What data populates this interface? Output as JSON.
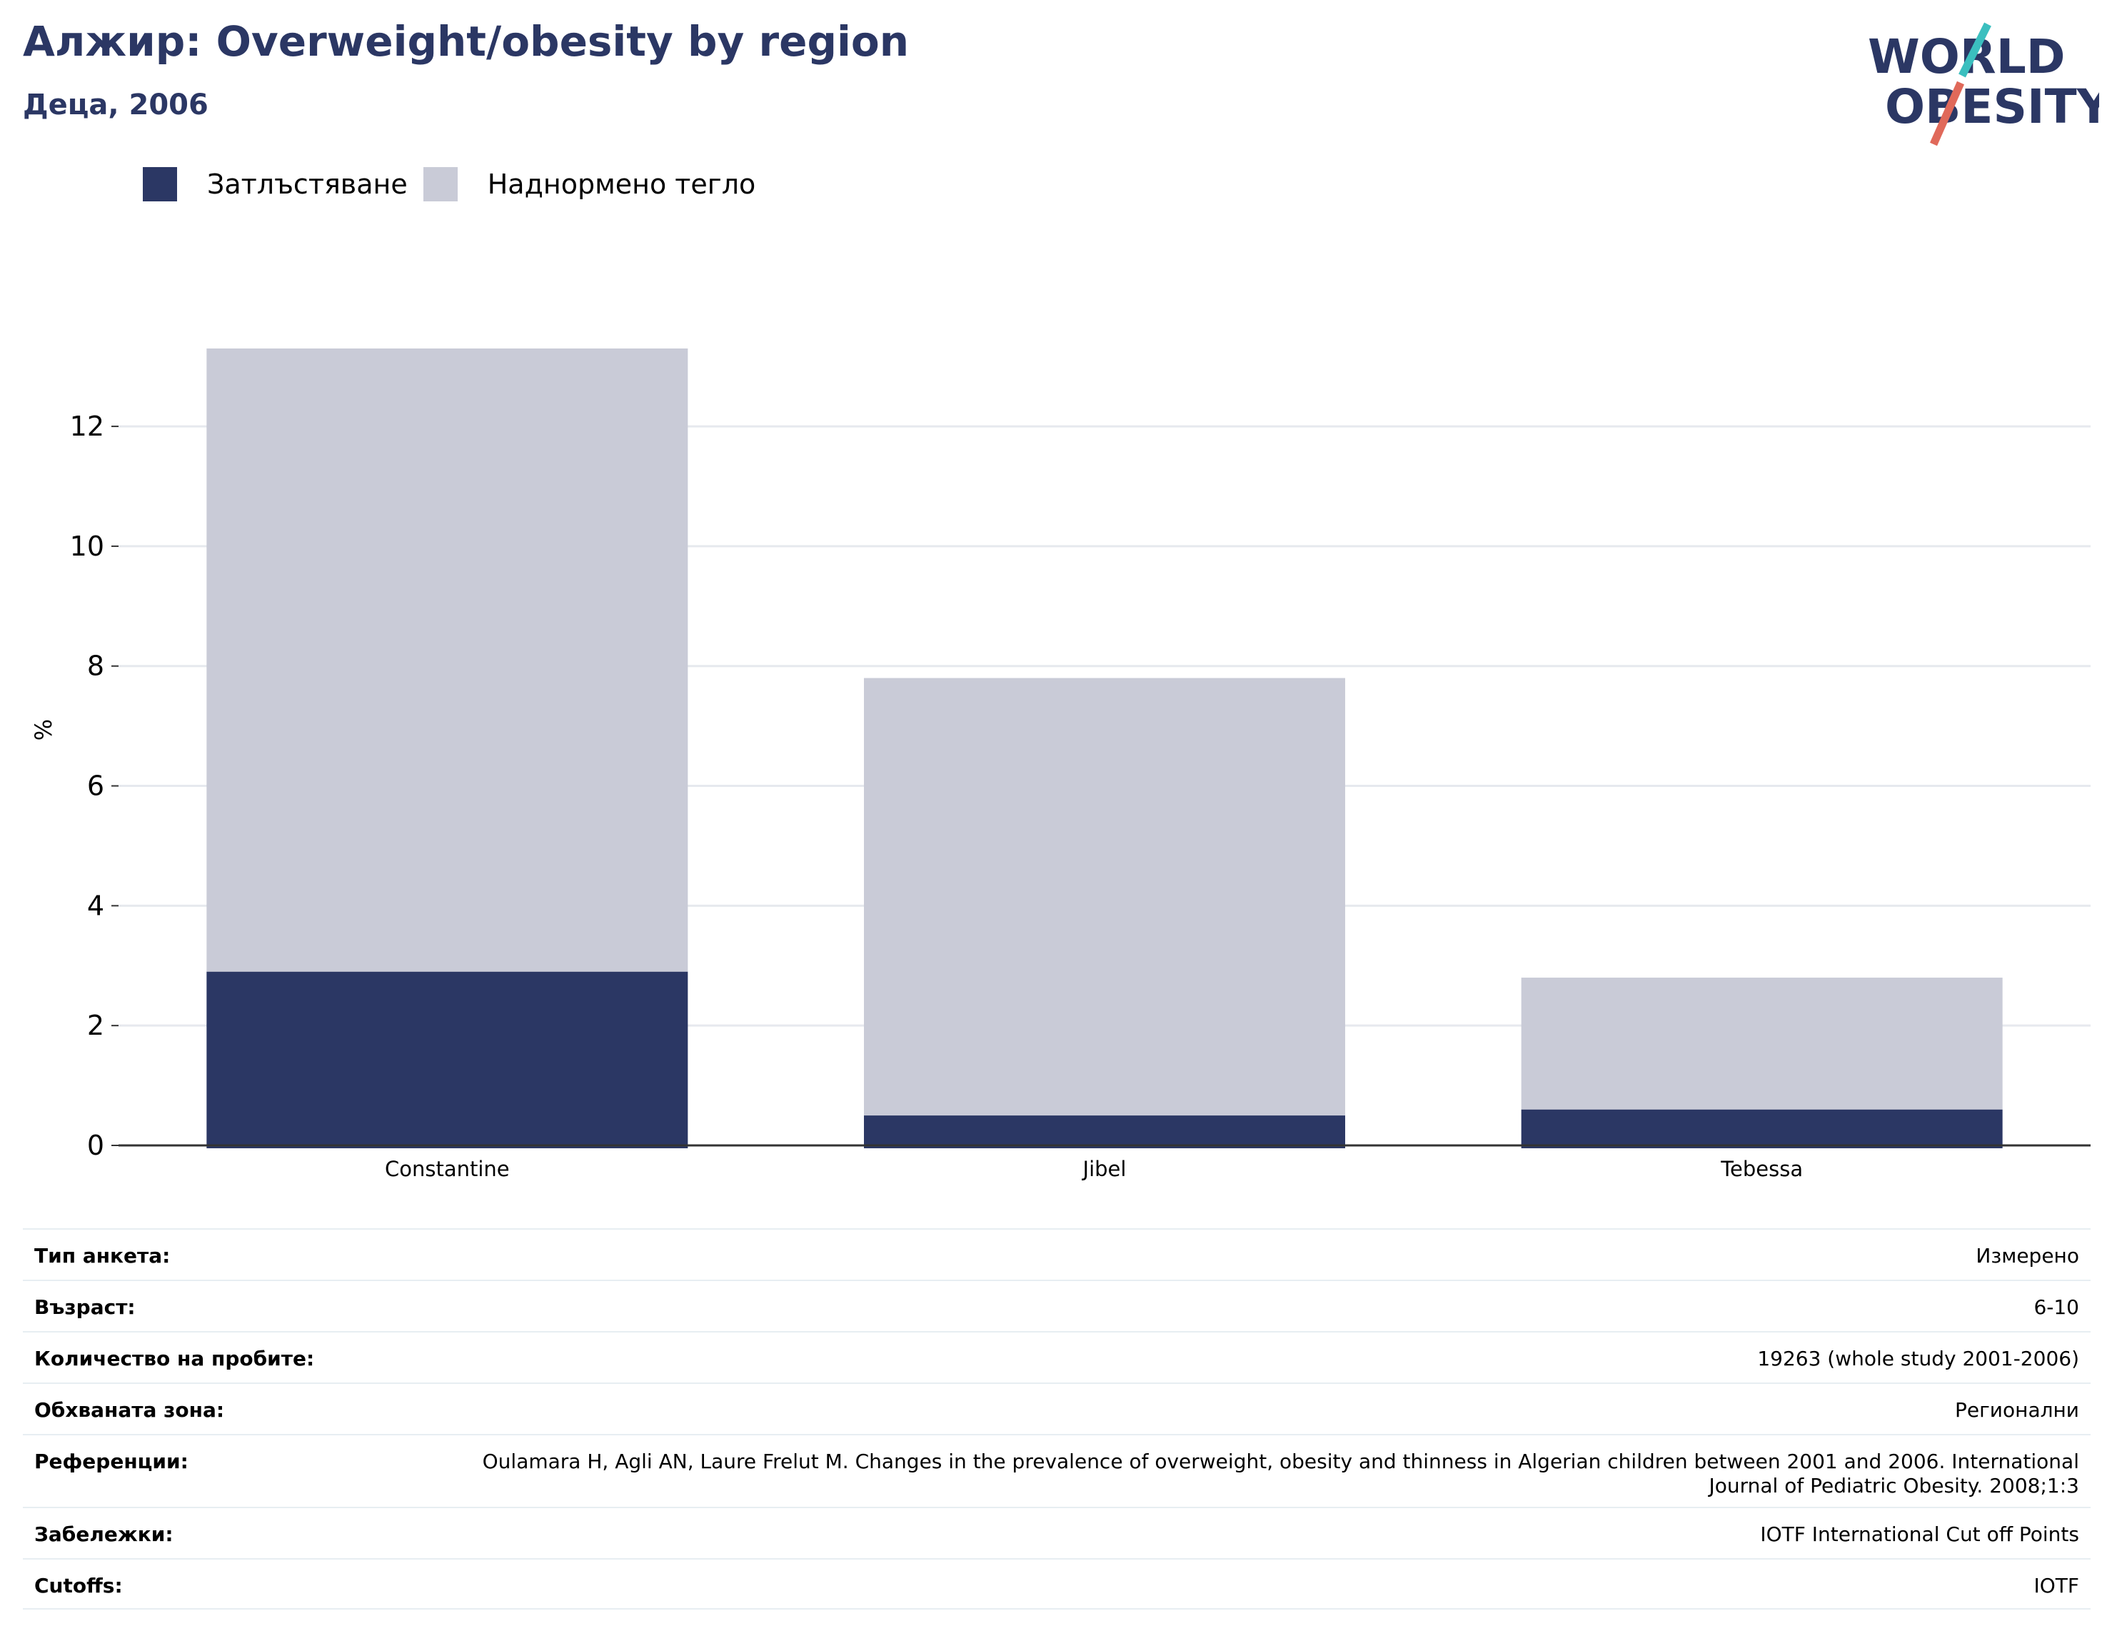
{
  "header": {
    "title": "Алжир: Overweight/obesity by region",
    "subtitle": "Деца, 2006"
  },
  "logo": {
    "line1": "WORLD",
    "line2": "OBESITY",
    "accent_teal": "#3bbfbf",
    "accent_red": "#e0695a",
    "text_color": "#2b3764"
  },
  "colors": {
    "obesity": "#2b3764",
    "overweight": "#c9cbd7",
    "grid": "#e6e9ee",
    "axis": "#333333"
  },
  "chart_data": {
    "type": "bar",
    "stacked": true,
    "categories": [
      "Constantine",
      "Jibel",
      "Tebessa"
    ],
    "series": [
      {
        "name": "Затлъстяване",
        "values": [
          2.9,
          0.5,
          0.6
        ]
      },
      {
        "name": "Наднормено тегло",
        "values": [
          10.4,
          7.3,
          2.2
        ]
      }
    ],
    "ylabel": "%",
    "ylim": [
      0,
      13.3
    ],
    "yticks": [
      0,
      2,
      4,
      6,
      8,
      10,
      12
    ],
    "grid": true,
    "legend": "top-left"
  },
  "info": [
    {
      "label": "Тип анкета:",
      "value": "Измерено"
    },
    {
      "label": "Възраст:",
      "value": "6-10"
    },
    {
      "label": "Количество на пробите:",
      "value": "19263 (whole study 2001-2006)"
    },
    {
      "label": "Обхваната зона:",
      "value": "Регионални"
    },
    {
      "label": "Референции:",
      "value": "Oulamara H, Agli AN, Laure Frelut M. Changes in the prevalence of overweight, obesity and thinness in Algerian children between 2001 and 2006. International Journal of Pediatric Obesity. 2008;1:3"
    },
    {
      "label": "Забележки:",
      "value": "IOTF International Cut off Points"
    },
    {
      "label": "Cutoffs:",
      "value": "IOTF"
    }
  ]
}
